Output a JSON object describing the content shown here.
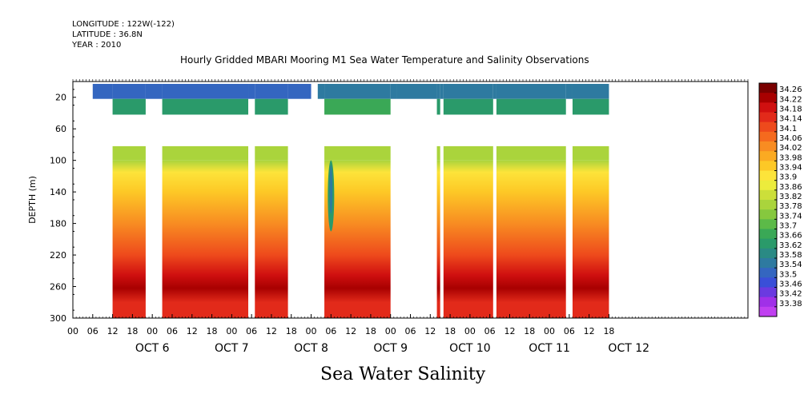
{
  "header": {
    "longitude": "LONGITUDE : 122W(-122)",
    "latitude": "LATITUDE : 36.8N",
    "year": "YEAR : 2010",
    "title": "Hourly Gridded MBARI Mooring M1 Sea Water Temperature and Salinity Observations"
  },
  "footer": {
    "variable_label": "Sea Water Salinity"
  },
  "chart_data": {
    "type": "heatmap",
    "title": "Hourly Gridded MBARI Mooring M1 Sea Water Temperature and Salinity Observations",
    "xlabel": "",
    "ylabel": "DEPTH (m)",
    "x_unit": "hours since OCT 6 00:00",
    "xlim": [
      -24,
      180
    ],
    "ylim": [
      300,
      0
    ],
    "y_ticks": [
      20,
      60,
      100,
      140,
      180,
      220,
      260,
      300
    ],
    "x_hour_ticks": [
      "00",
      "06",
      "12",
      "18",
      "00",
      "06",
      "12",
      "18",
      "00",
      "06",
      "12",
      "18",
      "00",
      "06",
      "12",
      "18",
      "00",
      "06",
      "12",
      "18",
      "00",
      "06",
      "12",
      "18",
      "00",
      "06",
      "12",
      "18"
    ],
    "x_hour_tick_positions": [
      -24,
      -18,
      -12,
      -6,
      0,
      6,
      12,
      18,
      24,
      30,
      36,
      42,
      48,
      54,
      60,
      66,
      72,
      78,
      84,
      90,
      96,
      102,
      108,
      114,
      120,
      126,
      132,
      138
    ],
    "day_labels": [
      {
        "label": "OCT  6",
        "hour": 0
      },
      {
        "label": "OCT  7",
        "hour": 24
      },
      {
        "label": "OCT  8",
        "hour": 48
      },
      {
        "label": "OCT  9",
        "hour": 72
      },
      {
        "label": "OCT 10",
        "hour": 96
      },
      {
        "label": "OCT 11",
        "hour": 120
      },
      {
        "label": "OCT 12",
        "hour": 144
      }
    ],
    "colorbar": {
      "levels": [
        34.26,
        34.22,
        34.18,
        34.14,
        34.1,
        34.06,
        34.02,
        33.98,
        33.94,
        33.9,
        33.86,
        33.82,
        33.78,
        33.74,
        33.7,
        33.66,
        33.62,
        33.58,
        33.54,
        33.5,
        33.46,
        33.42,
        33.38
      ],
      "colors": [
        "#7a0000",
        "#a80000",
        "#d01010",
        "#e22a1a",
        "#ee4a1c",
        "#f56a1e",
        "#f88c22",
        "#fbaa22",
        "#fdc826",
        "#fde43a",
        "#ecec3c",
        "#ccdf3a",
        "#aad43c",
        "#86c83e",
        "#5cba48",
        "#3aa856",
        "#2a9a6a",
        "#2a8a84",
        "#2e7aa0",
        "#3466c0",
        "#3a4fd8",
        "#6a3ae0",
        "#a030e8",
        "#c040f0"
      ]
    },
    "segments": [
      {
        "start": -24,
        "end": -18,
        "shallow": "none",
        "mid": "none",
        "deep": "none"
      },
      {
        "start": -18,
        "end": -12,
        "shallow": 33.52,
        "mid": "none",
        "deep": "none"
      },
      {
        "start": -12,
        "end": -2,
        "shallow": 33.52,
        "mid": 33.64,
        "deep": 34.16
      },
      {
        "start": -2,
        "end": 3,
        "shallow": 33.52,
        "mid": "none",
        "deep": "none"
      },
      {
        "start": 3,
        "end": 29,
        "shallow": 33.52,
        "mid": 33.64,
        "deep": 34.16
      },
      {
        "start": 29,
        "end": 31,
        "shallow": 33.52,
        "mid": "none",
        "deep": "none"
      },
      {
        "start": 31,
        "end": 41,
        "shallow": 33.52,
        "mid": 33.64,
        "deep": 34.16
      },
      {
        "start": 41,
        "end": 48,
        "shallow": 33.52,
        "mid": "none",
        "deep": "none"
      },
      {
        "start": 48,
        "end": 50,
        "shallow": "none",
        "mid": "none",
        "deep": "none"
      },
      {
        "start": 50,
        "end": 52,
        "shallow": 33.54,
        "mid": "none",
        "deep": "none"
      },
      {
        "start": 52,
        "end": 72,
        "shallow": 33.54,
        "mid": 33.66,
        "deep": 34.16
      },
      {
        "start": 72,
        "end": 74,
        "shallow": 33.56,
        "mid": "none",
        "deep": "none"
      },
      {
        "start": 74,
        "end": 86,
        "shallow": 33.56,
        "mid": "none",
        "deep": "none"
      },
      {
        "start": 86,
        "end": 87,
        "shallow": 33.56,
        "mid": 33.64,
        "deep": 34.2
      },
      {
        "start": 87,
        "end": 88,
        "shallow": 33.56,
        "mid": "none",
        "deep": "none"
      },
      {
        "start": 88,
        "end": 103,
        "shallow": 33.56,
        "mid": 33.64,
        "deep": 34.16
      },
      {
        "start": 103,
        "end": 104,
        "shallow": 33.56,
        "mid": "none",
        "deep": "none"
      },
      {
        "start": 104,
        "end": 125,
        "shallow": 33.56,
        "mid": 33.64,
        "deep": 34.16
      },
      {
        "start": 125,
        "end": 127,
        "shallow": 33.56,
        "mid": "none",
        "deep": "none"
      },
      {
        "start": 127,
        "end": 138,
        "shallow": 33.56,
        "mid": 33.64,
        "deep": 34.16
      }
    ],
    "fresh_anomaly": {
      "hour": 54,
      "depth_top": 100,
      "depth_bottom": 190,
      "min_value": 33.54
    }
  }
}
